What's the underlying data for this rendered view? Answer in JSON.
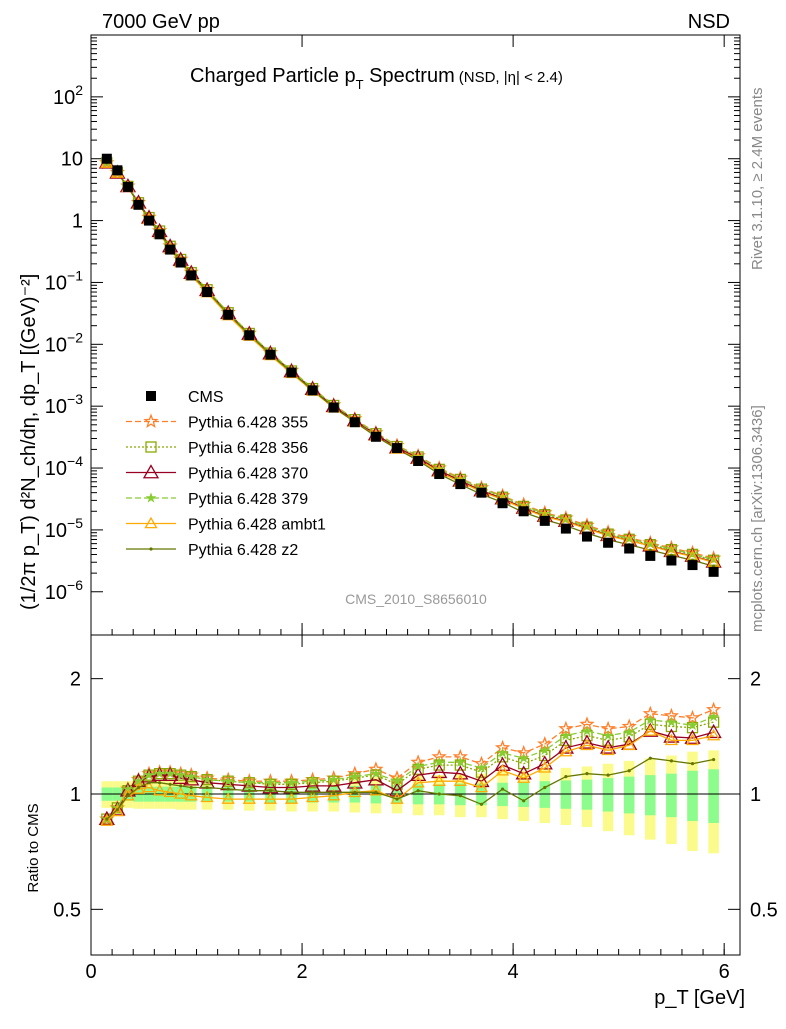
{
  "header": {
    "left": "7000 GeV pp",
    "right": "NSD"
  },
  "side_labels": {
    "rivet": "Rivet 3.1.10, ≥ 2.4M events",
    "mcplots": "mcplots.cern.ch [arXiv:1306.3436]"
  },
  "analysis_id": "CMS_2010_S8656010",
  "main_title": {
    "text": "Charged Particle p",
    "sub": "T",
    "text2": " Spectrum",
    "small": "(NSD, |η| < 2.4)"
  },
  "ylabel_upper": "(1/2π p_T) d²N_ch/dη, dp_T [(GeV)⁻²]",
  "ylabel_lower": "Ratio to CMS",
  "xlabel": "p_T [GeV]",
  "colors": {
    "cms": "#000000",
    "p355": "#ff7f2a",
    "p356": "#88aa00",
    "p370": "#990022",
    "p379": "#88cc33",
    "ambt1": "#ffaa00",
    "z2": "#667700",
    "band_inner": "#8cfc8c",
    "band_outer": "#fbfb8c"
  },
  "legend": [
    {
      "key": "cms",
      "label": "CMS"
    },
    {
      "key": "p355",
      "label": "Pythia 6.428 355"
    },
    {
      "key": "p356",
      "label": "Pythia 6.428 356"
    },
    {
      "key": "p370",
      "label": "Pythia 6.428 370"
    },
    {
      "key": "p379",
      "label": "Pythia 6.428 379"
    },
    {
      "key": "ambt1",
      "label": "Pythia 6.428 ambt1"
    },
    {
      "key": "z2",
      "label": "Pythia 6.428 z2"
    }
  ],
  "chart_data": {
    "type": "scatter",
    "xlim": [
      0,
      6.15
    ],
    "upper": {
      "yscale": "log",
      "ylim": [
        2e-07,
        1000
      ],
      "yticks": [
        {
          "v": 1e-06,
          "m": "10",
          "e": "−6"
        },
        {
          "v": 1e-05,
          "m": "10",
          "e": "−5"
        },
        {
          "v": 0.0001,
          "m": "10",
          "e": "−4"
        },
        {
          "v": 0.001,
          "m": "10",
          "e": "−3"
        },
        {
          "v": 0.01,
          "m": "10",
          "e": "−2"
        },
        {
          "v": 0.1,
          "m": "10",
          "e": "−1"
        },
        {
          "v": 1,
          "m": "1",
          "e": ""
        },
        {
          "v": 10,
          "m": "10",
          "e": ""
        },
        {
          "v": 100,
          "m": "10",
          "e": "2"
        }
      ]
    },
    "lower": {
      "yscale": "log",
      "ylim": [
        0.38,
        2.6
      ],
      "yticks": [
        {
          "v": 0.5,
          "label": "0.5"
        },
        {
          "v": 1,
          "label": "1"
        },
        {
          "v": 2,
          "label": "2"
        }
      ]
    },
    "xticks": [
      {
        "v": 0,
        "label": "0"
      },
      {
        "v": 2,
        "label": "2"
      },
      {
        "v": 4,
        "label": "4"
      },
      {
        "v": 6,
        "label": "6"
      }
    ],
    "x": [
      0.15,
      0.25,
      0.35,
      0.45,
      0.55,
      0.65,
      0.75,
      0.85,
      0.95,
      1.1,
      1.3,
      1.5,
      1.7,
      1.9,
      2.1,
      2.3,
      2.5,
      2.7,
      2.9,
      3.1,
      3.3,
      3.5,
      3.7,
      3.9,
      4.1,
      4.3,
      4.5,
      4.7,
      4.9,
      5.1,
      5.3,
      5.5,
      5.7,
      5.9
    ],
    "cms": [
      10.0,
      6.5,
      3.5,
      1.8,
      1.0,
      0.6,
      0.34,
      0.21,
      0.13,
      0.07,
      0.03,
      0.014,
      0.0068,
      0.0035,
      0.0018,
      0.00095,
      0.00055,
      0.00032,
      0.00021,
      0.00013,
      8e-05,
      5.5e-05,
      4e-05,
      2.7e-05,
      2e-05,
      1.4e-05,
      1.05e-05,
      7.8e-06,
      6.2e-06,
      5e-06,
      3.8e-06,
      3.2e-06,
      2.7e-06,
      2.1e-06
    ],
    "cms_render_scale": 1.76e-05,
    "series": [
      {
        "key": "p355",
        "ratio": [
          0.86,
          0.92,
          1.03,
          1.09,
          1.13,
          1.14,
          1.14,
          1.13,
          1.12,
          1.1,
          1.09,
          1.08,
          1.08,
          1.08,
          1.09,
          1.1,
          1.13,
          1.16,
          1.1,
          1.21,
          1.25,
          1.25,
          1.2,
          1.32,
          1.28,
          1.35,
          1.48,
          1.52,
          1.48,
          1.5,
          1.62,
          1.6,
          1.58,
          1.66
        ]
      },
      {
        "key": "p356",
        "ratio": [
          0.86,
          0.92,
          1.02,
          1.08,
          1.12,
          1.13,
          1.13,
          1.12,
          1.11,
          1.09,
          1.08,
          1.07,
          1.06,
          1.06,
          1.07,
          1.08,
          1.1,
          1.12,
          1.06,
          1.16,
          1.19,
          1.19,
          1.14,
          1.25,
          1.2,
          1.26,
          1.38,
          1.42,
          1.38,
          1.41,
          1.52,
          1.5,
          1.49,
          1.54
        ]
      },
      {
        "key": "p370",
        "ratio": [
          0.86,
          0.91,
          1.02,
          1.08,
          1.11,
          1.12,
          1.12,
          1.1,
          1.09,
          1.07,
          1.06,
          1.05,
          1.04,
          1.04,
          1.05,
          1.05,
          1.07,
          1.09,
          1.02,
          1.12,
          1.14,
          1.13,
          1.08,
          1.19,
          1.13,
          1.2,
          1.32,
          1.36,
          1.32,
          1.35,
          1.46,
          1.41,
          1.4,
          1.45
        ]
      },
      {
        "key": "p379",
        "ratio": [
          0.86,
          0.92,
          1.03,
          1.08,
          1.12,
          1.13,
          1.13,
          1.12,
          1.11,
          1.09,
          1.08,
          1.07,
          1.07,
          1.07,
          1.08,
          1.09,
          1.11,
          1.13,
          1.08,
          1.18,
          1.21,
          1.21,
          1.17,
          1.28,
          1.24,
          1.3,
          1.42,
          1.46,
          1.42,
          1.45,
          1.56,
          1.54,
          1.51,
          1.59
        ]
      },
      {
        "key": "ambt1",
        "ratio": [
          0.85,
          0.9,
          0.99,
          1.03,
          1.04,
          1.02,
          1.01,
          1.0,
          0.99,
          0.98,
          0.97,
          0.97,
          0.97,
          0.97,
          0.98,
          0.99,
          1.01,
          1.02,
          0.97,
          1.07,
          1.08,
          1.08,
          1.04,
          1.15,
          1.1,
          1.17,
          1.29,
          1.34,
          1.3,
          1.34,
          1.46,
          1.38,
          1.38,
          1.42
        ]
      },
      {
        "key": "z2",
        "ratio": [
          0.86,
          0.91,
          0.99,
          1.04,
          1.07,
          1.07,
          1.06,
          1.05,
          1.04,
          1.04,
          1.03,
          1.02,
          1.02,
          1.01,
          1.01,
          1.01,
          1.01,
          1.01,
          0.97,
          1.02,
          1.0,
          0.99,
          0.94,
          1.03,
          0.96,
          1.04,
          1.11,
          1.13,
          1.12,
          1.15,
          1.24,
          1.22,
          1.2,
          1.23
        ]
      }
    ],
    "band_inner_halfwidth": [
      0.04,
      0.04,
      0.04,
      0.045,
      0.045,
      0.045,
      0.045,
      0.045,
      0.045,
      0.045,
      0.045,
      0.045,
      0.05,
      0.05,
      0.05,
      0.05,
      0.05,
      0.055,
      0.055,
      0.06,
      0.06,
      0.065,
      0.065,
      0.07,
      0.075,
      0.08,
      0.085,
      0.09,
      0.1,
      0.11,
      0.12,
      0.13,
      0.15,
      0.16
    ],
    "band_outer_halfwidth": [
      0.08,
      0.08,
      0.08,
      0.085,
      0.085,
      0.085,
      0.085,
      0.09,
      0.09,
      0.09,
      0.09,
      0.095,
      0.095,
      0.1,
      0.1,
      0.1,
      0.105,
      0.11,
      0.11,
      0.12,
      0.12,
      0.13,
      0.13,
      0.14,
      0.15,
      0.16,
      0.17,
      0.18,
      0.2,
      0.22,
      0.24,
      0.26,
      0.29,
      0.3
    ]
  }
}
